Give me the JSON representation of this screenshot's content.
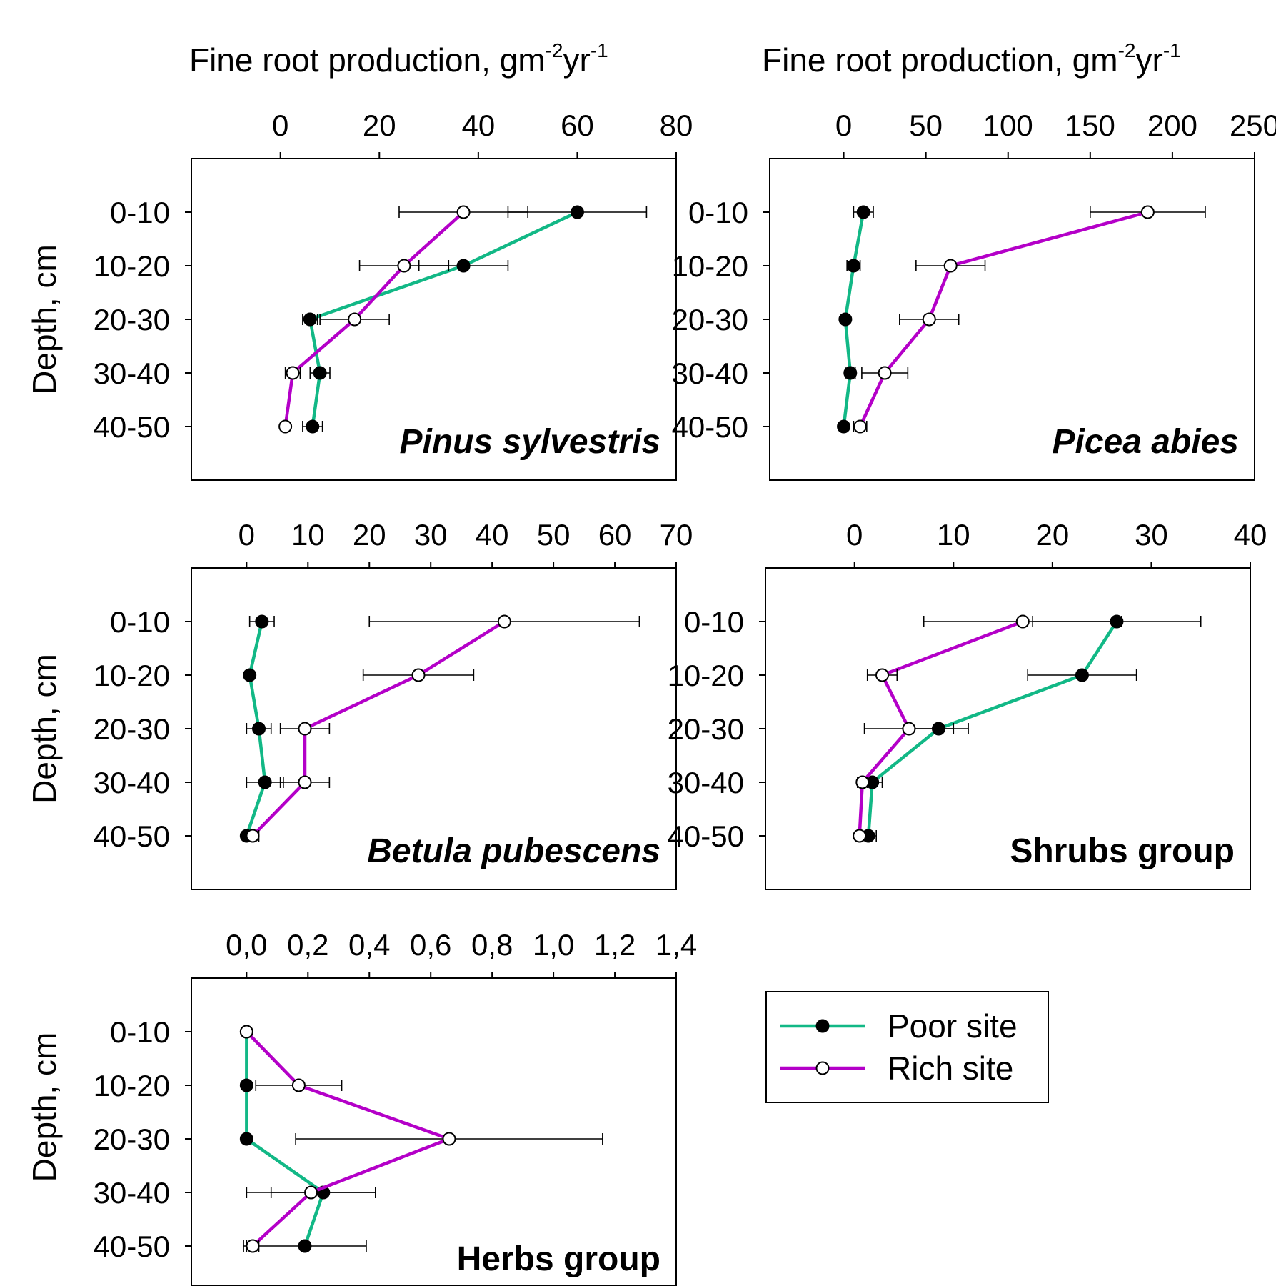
{
  "colors": {
    "poor": "#12b886",
    "rich": "#b400c8",
    "axis": "#000000"
  },
  "chart_data": [
    {
      "type": "line",
      "panel": "Pinus sylvestris",
      "label": "Pinus sylvestris",
      "label_italic": true,
      "xlabel_main": "Fine root production,  gm",
      "xlabel_sup1": "-2",
      "xlabel_mid": "yr",
      "xlabel_sup2": "-1",
      "ylabel": "Depth, cm",
      "xlim": [
        -18,
        80
      ],
      "xticks": [
        0,
        20,
        40,
        60,
        80
      ],
      "xtick_labels": [
        "0",
        "20",
        "40",
        "60",
        "80"
      ],
      "categories": [
        "0-10",
        "10-20",
        "20-30",
        "30-40",
        "40-50"
      ],
      "series": [
        {
          "name": "Poor site",
          "values": [
            60,
            37,
            6,
            8,
            6.5
          ],
          "err": [
            14,
            9,
            1.5,
            2,
            2
          ]
        },
        {
          "name": "Rich site",
          "values": [
            37,
            25,
            15,
            2.5,
            1
          ],
          "err": [
            13,
            9,
            7,
            1.5,
            0.5
          ]
        }
      ]
    },
    {
      "type": "line",
      "panel": "Picea abies",
      "label": "Picea abies",
      "label_italic": true,
      "xlabel_main": "Fine root production,  gm",
      "xlabel_sup1": "-2",
      "xlabel_mid": "yr",
      "xlabel_sup2": "-1",
      "ylabel": "",
      "xlim": [
        -45,
        250
      ],
      "xticks": [
        0,
        50,
        100,
        150,
        200,
        250
      ],
      "xtick_labels": [
        "0",
        "50",
        "100",
        "150",
        "200",
        "250"
      ],
      "categories": [
        "0-10",
        "10-20",
        "20-30",
        "30-40",
        "40-50"
      ],
      "series": [
        {
          "name": "Poor site",
          "values": [
            12,
            6,
            1,
            4,
            0
          ],
          "err": [
            6,
            4,
            1,
            3,
            1
          ]
        },
        {
          "name": "Rich site",
          "values": [
            185,
            65,
            52,
            25,
            10
          ],
          "err": [
            35,
            21,
            18,
            14,
            4
          ]
        }
      ]
    },
    {
      "type": "line",
      "panel": "Betula pubescens",
      "label": "Betula pubescens",
      "label_italic": true,
      "ylabel": "Depth, cm",
      "xlim": [
        -9,
        70
      ],
      "xticks": [
        0,
        10,
        20,
        30,
        40,
        50,
        60,
        70
      ],
      "xtick_labels": [
        "0",
        "10",
        "20",
        "30",
        "40",
        "50",
        "60",
        "70"
      ],
      "categories": [
        "0-10",
        "10-20",
        "20-30",
        "30-40",
        "40-50"
      ],
      "series": [
        {
          "name": "Poor site",
          "values": [
            2.5,
            0.5,
            2,
            3,
            0
          ],
          "err": [
            2,
            0.5,
            2,
            3,
            0.5
          ]
        },
        {
          "name": "Rich site",
          "values": [
            42,
            28,
            9.5,
            9.5,
            1
          ],
          "err": [
            22,
            9,
            4,
            4,
            1
          ]
        }
      ]
    },
    {
      "type": "line",
      "panel": "Shrubs group",
      "label": "Shrubs group",
      "label_italic": false,
      "ylabel": "",
      "xlim": [
        -9,
        40
      ],
      "xticks": [
        0,
        10,
        20,
        30,
        40
      ],
      "xtick_labels": [
        "0",
        "10",
        "20",
        "30",
        "40"
      ],
      "categories": [
        "0-10",
        "10-20",
        "20-30",
        "30-40",
        "40-50"
      ],
      "series": [
        {
          "name": "Poor site",
          "values": [
            26.5,
            23,
            8.5,
            1.8,
            1.4
          ],
          "err": [
            8.5,
            5.5,
            3,
            1,
            0.8
          ]
        },
        {
          "name": "Rich site",
          "values": [
            17,
            2.8,
            5.5,
            0.8,
            0.5
          ],
          "err": [
            10,
            1.5,
            4.5,
            0.5,
            0.3
          ]
        }
      ]
    },
    {
      "type": "line",
      "panel": "Herbs group",
      "label": "Herbs group",
      "label_italic": false,
      "ylabel": "Depth, cm",
      "xlim": [
        -0.18,
        1.4
      ],
      "xticks": [
        0,
        0.2,
        0.4,
        0.6,
        0.8,
        1.0,
        1.2,
        1.4
      ],
      "xtick_labels": [
        "0,0",
        "0,2",
        "0,4",
        "0,6",
        "0,8",
        "1,0",
        "1,2",
        "1,4"
      ],
      "categories": [
        "0-10",
        "10-20",
        "20-30",
        "30-40",
        "40-50"
      ],
      "series": [
        {
          "name": "Poor site",
          "values": [
            0,
            0,
            0,
            0.25,
            0.19
          ],
          "err": [
            0,
            0,
            0,
            0.17,
            0.2
          ]
        },
        {
          "name": "Rich site",
          "values": [
            0,
            0.17,
            0.66,
            0.21,
            0.02
          ],
          "err": [
            0,
            0.14,
            0.5,
            0.21,
            0.02
          ]
        }
      ]
    }
  ],
  "legend": {
    "position": "bottom-right",
    "items": [
      {
        "label": "Poor site",
        "series": "poor"
      },
      {
        "label": "Rich site",
        "series": "rich"
      }
    ]
  }
}
